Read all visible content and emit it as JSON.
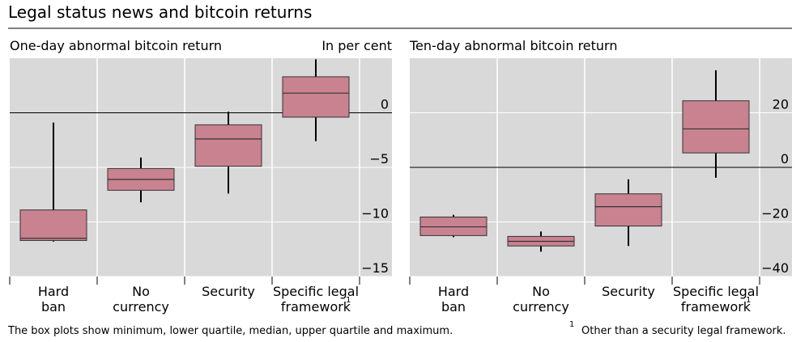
{
  "title": "Legal status news and bitcoin returns",
  "unit_label": "In per cent",
  "note": "The box plots show minimum, lower quartile, median, upper quartile and maximum.",
  "footnote_marker": "1",
  "footnote": "Other than a security legal framework.",
  "chart_data": [
    {
      "type": "box",
      "title": "One-day abnormal bitcoin return",
      "categories": [
        "Hard\nban",
        "No\ncurrency",
        "Security",
        "Specific legal\nframework"
      ],
      "values": [
        {
          "min": -11.8,
          "q1": -11.7,
          "median": -11.5,
          "q3": -8.9,
          "max": -0.9
        },
        {
          "min": -8.2,
          "q1": -7.1,
          "median": -6.1,
          "q3": -5.1,
          "max": -4.1
        },
        {
          "min": -7.4,
          "q1": -4.9,
          "median": -2.4,
          "q3": -1.1,
          "max": 0.1
        },
        {
          "min": -2.6,
          "q1": -0.4,
          "median": 1.8,
          "q3": 3.3,
          "max": 4.9
        }
      ],
      "color": "#c98290",
      "ylim": [
        -15,
        5
      ],
      "yticks": [
        0,
        {
          "value": -5,
          "label": "−5"
        },
        {
          "value": -10,
          "label": "−10"
        },
        {
          "value": -15,
          "label": "−15"
        }
      ],
      "grid": true
    },
    {
      "type": "box",
      "title": "Ten-day abnormal bitcoin return",
      "categories": [
        "Hard\nban",
        "No\ncurrency",
        "Security",
        "Specific legal\nframework"
      ],
      "values": [
        {
          "min": -25.6,
          "q1": -25,
          "median": -21.8,
          "q3": -18.2,
          "max": -17.4
        },
        {
          "min": -30.9,
          "q1": -28.8,
          "median": -27.1,
          "q3": -25.3,
          "max": -23.5
        },
        {
          "min": -28.8,
          "q1": -21.5,
          "median": -14.4,
          "q3": -9.7,
          "max": -4.4
        },
        {
          "min": -3.8,
          "q1": 5.3,
          "median": 14.1,
          "q3": 24.4,
          "max": 35.6
        }
      ],
      "color": "#c98290",
      "ylim": [
        -40,
        40
      ],
      "yticks": [
        20,
        0,
        {
          "value": -20,
          "label": "−20"
        },
        {
          "value": -40,
          "label": "−40"
        }
      ],
      "grid": true
    }
  ]
}
